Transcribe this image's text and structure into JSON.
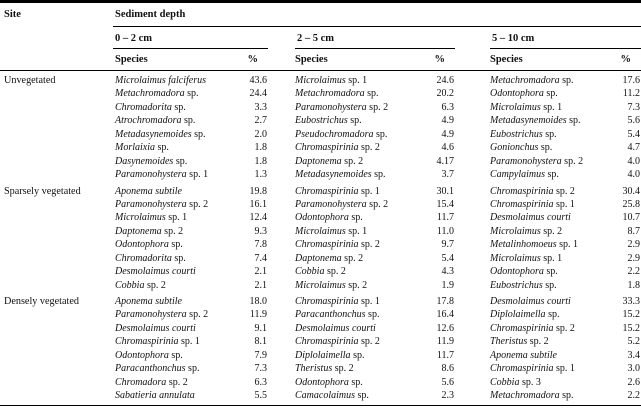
{
  "table": {
    "site_header": "Site",
    "group_header": "Sediment depth",
    "depths": [
      {
        "label": "0 – 2 cm"
      },
      {
        "label": "2 – 5 cm"
      },
      {
        "label": "5 – 10 cm"
      }
    ],
    "species_header": "Species",
    "pct_header": "%",
    "sections": [
      {
        "site": "Unvegetated",
        "rows": [
          {
            "cells": [
              {
                "it": "Microlaimus falciferus",
                "ro": "",
                "pct": "43.6"
              },
              {
                "it": "Microlaimus",
                "ro": "sp. 1",
                "pct": "24.6"
              },
              {
                "it": "Metachromadora",
                "ro": "sp.",
                "pct": "17.6"
              }
            ]
          },
          {
            "cells": [
              {
                "it": "Metachromadora",
                "ro": "sp.",
                "pct": "24.4"
              },
              {
                "it": "Metachromadora",
                "ro": "sp.",
                "pct": "20.2"
              },
              {
                "it": "Odontophora",
                "ro": "sp.",
                "pct": "11.2"
              }
            ]
          },
          {
            "cells": [
              {
                "it": "Chromadorita",
                "ro": "sp.",
                "pct": "3.3"
              },
              {
                "it": "Paramonohystera",
                "ro": "sp. 2",
                "pct": "6.3"
              },
              {
                "it": "Microlaimus",
                "ro": "sp. 1",
                "pct": "7.3"
              }
            ]
          },
          {
            "cells": [
              {
                "it": "Atrochromadora",
                "ro": "sp.",
                "pct": "2.7"
              },
              {
                "it": "Eubostrichus",
                "ro": "sp.",
                "pct": "4.9"
              },
              {
                "it": "Metadasynemoides",
                "ro": "sp.",
                "pct": "5.6"
              }
            ]
          },
          {
            "cells": [
              {
                "it": "Metadasynemoides",
                "ro": "sp.",
                "pct": "2.0"
              },
              {
                "it": "Pseudochromadora",
                "ro": "sp.",
                "pct": "4.9"
              },
              {
                "it": "Eubostrichus",
                "ro": "sp.",
                "pct": "5.4"
              }
            ]
          },
          {
            "cells": [
              {
                "it": "Morlaixia",
                "ro": "sp.",
                "pct": "1.8"
              },
              {
                "it": "Chromaspirinia",
                "ro": "sp. 2",
                "pct": "4.6"
              },
              {
                "it": "Gonionchus",
                "ro": "sp.",
                "pct": "4.7"
              }
            ]
          },
          {
            "cells": [
              {
                "it": "Dasynemoides",
                "ro": "sp.",
                "pct": "1.8"
              },
              {
                "it": "Daptonema",
                "ro": "sp. 2",
                "pct": "4.17"
              },
              {
                "it": "Paramonohystera",
                "ro": "sp. 2",
                "pct": "4.0"
              }
            ]
          },
          {
            "cells": [
              {
                "it": "Paramonohystera",
                "ro": "sp. 1",
                "pct": "1.3"
              },
              {
                "it": "Metadasynemoides",
                "ro": "sp.",
                "pct": "3.7"
              },
              {
                "it": "Campylaimus",
                "ro": "sp.",
                "pct": "4.0"
              }
            ]
          }
        ]
      },
      {
        "site": "Sparsely vegetated",
        "rows": [
          {
            "cells": [
              {
                "it": "Aponema subtile",
                "ro": "",
                "pct": "19.8"
              },
              {
                "it": "Chromaspirinia",
                "ro": "sp. 1",
                "pct": "30.1"
              },
              {
                "it": "Chromaspirinia",
                "ro": "sp. 2",
                "pct": "30.4"
              }
            ]
          },
          {
            "cells": [
              {
                "it": "Paramonohystera",
                "ro": "sp. 2",
                "pct": "16.1"
              },
              {
                "it": "Paramonohystera",
                "ro": "sp. 2",
                "pct": "15.4"
              },
              {
                "it": "Chromaspirinia",
                "ro": "sp. 1",
                "pct": "25.8"
              }
            ]
          },
          {
            "cells": [
              {
                "it": "Microlaimus",
                "ro": "sp. 1",
                "pct": "12.4"
              },
              {
                "it": "Odontophora",
                "ro": "sp.",
                "pct": "11.7"
              },
              {
                "it": "Desmolaimus courti",
                "ro": "",
                "pct": "10.7"
              }
            ]
          },
          {
            "cells": [
              {
                "it": "Daptonema",
                "ro": "sp. 2",
                "pct": "9.3"
              },
              {
                "it": "Microlaimus",
                "ro": "sp. 1",
                "pct": "11.0"
              },
              {
                "it": "Microlaimus",
                "ro": "sp. 2",
                "pct": "8.7"
              }
            ]
          },
          {
            "cells": [
              {
                "it": "Odontophora",
                "ro": "sp.",
                "pct": "7.8"
              },
              {
                "it": "Chromaspirinia",
                "ro": "sp. 2",
                "pct": "9.7"
              },
              {
                "it": "Metalinhomoeus",
                "ro": "sp. 1",
                "pct": "2.9"
              }
            ]
          },
          {
            "cells": [
              {
                "it": "Chromadorita",
                "ro": "sp.",
                "pct": "7.4"
              },
              {
                "it": "Daptonema",
                "ro": "sp. 2",
                "pct": "5.4"
              },
              {
                "it": "Microlaimus",
                "ro": "sp. 1",
                "pct": "2.9"
              }
            ]
          },
          {
            "cells": [
              {
                "it": "Desmolaimus courti",
                "ro": "",
                "pct": "2.1"
              },
              {
                "it": "Cobbia",
                "ro": "sp. 2",
                "pct": "4.3"
              },
              {
                "it": "Odontophora",
                "ro": "sp.",
                "pct": "2.2"
              }
            ]
          },
          {
            "cells": [
              {
                "it": "Cobbia",
                "ro": "sp. 2",
                "pct": "2.1"
              },
              {
                "it": "Microlaimus",
                "ro": "sp. 2",
                "pct": "1.9"
              },
              {
                "it": "Eubostrichus",
                "ro": "sp.",
                "pct": "1.8"
              }
            ]
          }
        ]
      },
      {
        "site": "Densely vegetated",
        "rows": [
          {
            "cells": [
              {
                "it": "Aponema subtile",
                "ro": "",
                "pct": "18.0"
              },
              {
                "it": "Chromaspirinia",
                "ro": "sp. 1",
                "pct": "17.8"
              },
              {
                "it": "Desmolaimus courti",
                "ro": "",
                "pct": "33.3"
              }
            ]
          },
          {
            "cells": [
              {
                "it": "Paramonohystera",
                "ro": "sp. 2",
                "pct": "11.9"
              },
              {
                "it": "Paracanthonchus",
                "ro": "sp.",
                "pct": "16.4"
              },
              {
                "it": "Diplolaimella",
                "ro": "sp.",
                "pct": "15.2"
              }
            ]
          },
          {
            "cells": [
              {
                "it": "Desmolaimus courti",
                "ro": "",
                "pct": "9.1"
              },
              {
                "it": "Desmolaimus courti",
                "ro": "",
                "pct": "12.6"
              },
              {
                "it": "Chromaspirinia",
                "ro": "sp. 2",
                "pct": "15.2"
              }
            ]
          },
          {
            "cells": [
              {
                "it": "Chromaspirinia",
                "ro": "sp. 1",
                "pct": "8.1"
              },
              {
                "it": "Chromaspirinia",
                "ro": "sp. 2",
                "pct": "11.9"
              },
              {
                "it": "Theristus",
                "ro": "sp. 2",
                "pct": "5.2"
              }
            ]
          },
          {
            "cells": [
              {
                "it": "Odontophora",
                "ro": "sp.",
                "pct": "7.9"
              },
              {
                "it": "Diplolaimella",
                "ro": "sp.",
                "pct": "11.7"
              },
              {
                "it": "Aponema subtile",
                "ro": "",
                "pct": "3.4"
              }
            ]
          },
          {
            "cells": [
              {
                "it": "Paracanthonchus",
                "ro": "sp.",
                "pct": "7.3"
              },
              {
                "it": "Theristus",
                "ro": "sp. 2",
                "pct": "8.6"
              },
              {
                "it": "Chromaspirinia",
                "ro": "sp. 1",
                "pct": "3.0"
              }
            ]
          },
          {
            "cells": [
              {
                "it": "Chromadora",
                "ro": "sp. 2",
                "pct": "6.3"
              },
              {
                "it": "Odontophora",
                "ro": "sp.",
                "pct": "5.6"
              },
              {
                "it": "Cobbia",
                "ro": "sp. 3",
                "pct": "2.6"
              }
            ]
          },
          {
            "cells": [
              {
                "it": "Sabatieria annulata",
                "ro": "",
                "pct": "5.5"
              },
              {
                "it": "Camacolaimus",
                "ro": "sp.",
                "pct": "2.3"
              },
              {
                "it": "Metachromadora",
                "ro": "sp.",
                "pct": "2.2"
              }
            ]
          }
        ]
      }
    ]
  }
}
